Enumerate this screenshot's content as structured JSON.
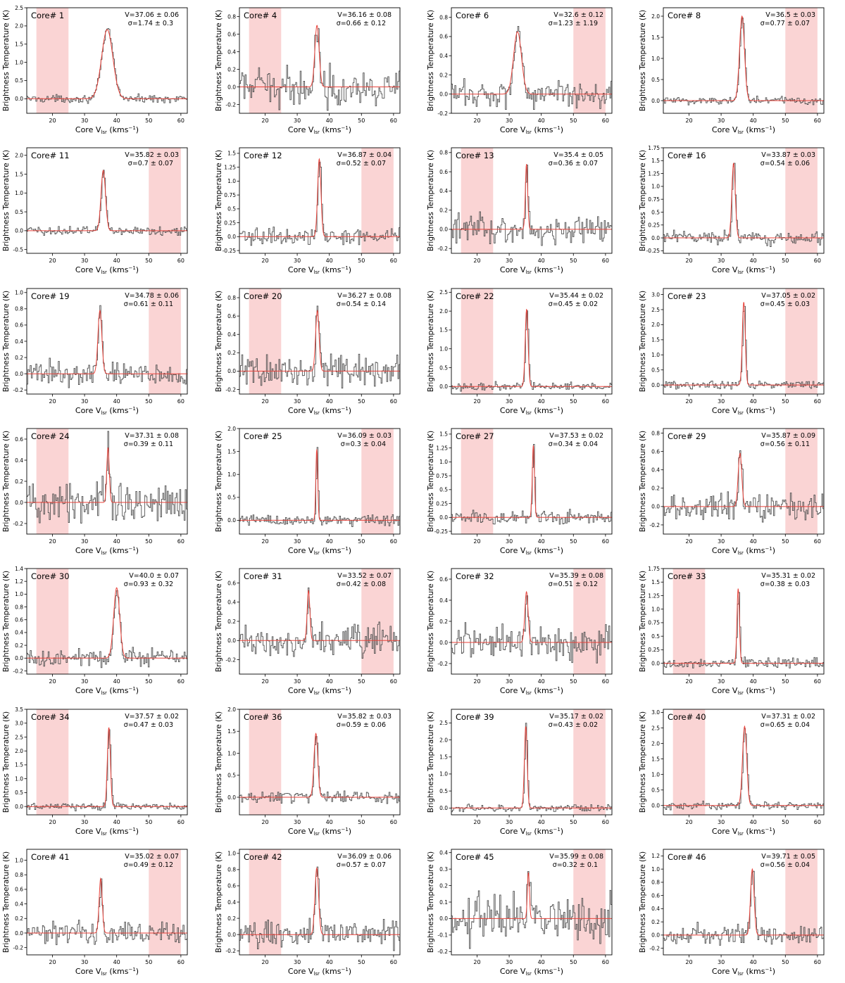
{
  "layout_rows": 7,
  "layout_cols": 4,
  "chart_data": [
    {
      "type": "line",
      "core": "Core# 1",
      "velocity": "V=37.06 ± 0.06",
      "sigma": "σ=1.74 ± 0.3",
      "center": 37.06,
      "width": 1.74,
      "peak": 1.9,
      "xlim": [
        12,
        62
      ],
      "ylim": [
        -0.4,
        2.5
      ],
      "yticks": [
        0.0,
        0.5,
        1.0,
        1.5,
        2.0,
        2.5
      ],
      "noise": 0.05,
      "shade": [
        15,
        25
      ],
      "xticks": [
        20,
        30,
        40,
        50,
        60
      ],
      "xlabel": "Core V_lsr (kms⁻¹)",
      "ylabel": "Brightness Temperature (K)"
    },
    {
      "type": "line",
      "core": "Core# 4",
      "velocity": "V=36.16 ± 0.08",
      "sigma": "σ=0.66 ± 0.12",
      "center": 36.16,
      "width": 0.66,
      "peak": 0.7,
      "xlim": [
        12,
        62
      ],
      "ylim": [
        -0.3,
        0.9
      ],
      "yticks": [
        -0.2,
        0.0,
        0.2,
        0.4,
        0.6,
        0.8
      ],
      "noise": 0.1,
      "shade": [
        15,
        25
      ],
      "xticks": [
        20,
        30,
        40,
        50,
        60
      ],
      "xlabel": "Core V_lsr (kms⁻¹)",
      "ylabel": "Brightness Temperature (K)"
    },
    {
      "type": "line",
      "core": "Core# 6",
      "velocity": "V=32.6 ± 0.12",
      "sigma": "σ=1.23 ± 1.19",
      "center": 32.6,
      "width": 1.23,
      "peak": 0.65,
      "xlim": [
        12,
        62
      ],
      "ylim": [
        -0.2,
        0.9
      ],
      "yticks": [
        -0.2,
        0.0,
        0.2,
        0.4,
        0.6,
        0.8
      ],
      "noise": 0.07,
      "shade": [
        50,
        60
      ],
      "xticks": [
        20,
        30,
        40,
        50,
        60
      ],
      "xlabel": "Core V_lsr (kms⁻¹)",
      "ylabel": "Brightness Temperature (K)"
    },
    {
      "type": "line",
      "core": "Core# 8",
      "velocity": "V=36.5 ± 0.03",
      "sigma": "σ=0.77 ± 0.07",
      "center": 36.5,
      "width": 0.77,
      "peak": 2.0,
      "xlim": [
        12,
        62
      ],
      "ylim": [
        -0.3,
        2.2
      ],
      "yticks": [
        0.0,
        0.5,
        1.0,
        1.5,
        2.0
      ],
      "noise": 0.05,
      "shade": [
        50,
        60
      ],
      "xticks": [
        20,
        30,
        40,
        50,
        60
      ],
      "xlabel": "Core V_lsr (kms⁻¹)",
      "ylabel": "Brightness Temperature (K)"
    },
    {
      "type": "line",
      "core": "Core# 11",
      "velocity": "V=35.82 ± 0.03",
      "sigma": "σ=0.7 ± 0.07",
      "center": 35.82,
      "width": 0.7,
      "peak": 1.6,
      "xlim": [
        12,
        62
      ],
      "ylim": [
        -0.6,
        2.2
      ],
      "yticks": [
        -0.5,
        0.0,
        0.5,
        1.0,
        1.5,
        2.0
      ],
      "noise": 0.06,
      "shade": [
        50,
        60
      ],
      "xticks": [
        20,
        30,
        40,
        50,
        60
      ],
      "xlabel": "Core V_lsr (kms⁻¹)",
      "ylabel": "Brightness Temperature (K)"
    },
    {
      "type": "line",
      "core": "Core# 12",
      "velocity": "V=36.87 ± 0.04",
      "sigma": "σ=0.52 ± 0.07",
      "center": 36.87,
      "width": 0.52,
      "peak": 1.4,
      "xlim": [
        12,
        62
      ],
      "ylim": [
        -0.3,
        1.6
      ],
      "yticks": [
        -0.25,
        0.0,
        0.25,
        0.5,
        0.75,
        1.0,
        1.25,
        1.5
      ],
      "noise": 0.07,
      "shade": [
        50,
        60
      ],
      "xticks": [
        20,
        30,
        40,
        50,
        60
      ],
      "xlabel": "Core V_lsr (kms⁻¹)",
      "ylabel": "Brightness Temperature (K)"
    },
    {
      "type": "line",
      "core": "Core# 13",
      "velocity": "V=35.4 ± 0.05",
      "sigma": "σ=0.36 ± 0.07",
      "center": 35.4,
      "width": 0.36,
      "peak": 0.68,
      "xlim": [
        12,
        62
      ],
      "ylim": [
        -0.25,
        0.85
      ],
      "yticks": [
        -0.2,
        0.0,
        0.2,
        0.4,
        0.6,
        0.8
      ],
      "noise": 0.07,
      "shade": [
        15,
        25
      ],
      "xticks": [
        20,
        30,
        40,
        50,
        60
      ],
      "xlabel": "Core V_lsr (kms⁻¹)",
      "ylabel": "Brightness Temperature (K)"
    },
    {
      "type": "line",
      "core": "Core# 16",
      "velocity": "V=33.87 ± 0.03",
      "sigma": "σ=0.54 ± 0.06",
      "center": 33.87,
      "width": 0.54,
      "peak": 1.45,
      "xlim": [
        12,
        62
      ],
      "ylim": [
        -0.3,
        1.75
      ],
      "yticks": [
        -0.25,
        0.0,
        0.25,
        0.5,
        0.75,
        1.0,
        1.25,
        1.5,
        1.75
      ],
      "noise": 0.06,
      "shade": [
        50,
        60
      ],
      "xticks": [
        20,
        30,
        40,
        50,
        60
      ],
      "xlabel": "Core V_lsr (kms⁻¹)",
      "ylabel": "Brightness Temperature (K)"
    },
    {
      "type": "line",
      "core": "Core# 19",
      "velocity": "V=34.78 ± 0.06",
      "sigma": "σ=0.61 ± 0.11",
      "center": 34.78,
      "width": 0.61,
      "peak": 0.78,
      "xlim": [
        12,
        62
      ],
      "ylim": [
        -0.25,
        1.05
      ],
      "yticks": [
        -0.2,
        0.0,
        0.2,
        0.4,
        0.6,
        0.8,
        1.0
      ],
      "noise": 0.07,
      "shade": [
        50,
        60
      ],
      "xticks": [
        20,
        30,
        40,
        50,
        60
      ],
      "xlabel": "Core V_lsr (kms⁻¹)",
      "ylabel": "Brightness Temperature (K)"
    },
    {
      "type": "line",
      "core": "Core# 20",
      "velocity": "V=36.27 ± 0.08",
      "sigma": "σ=0.54 ± 0.14",
      "center": 36.27,
      "width": 0.54,
      "peak": 0.66,
      "xlim": [
        12,
        62
      ],
      "ylim": [
        -0.25,
        0.9
      ],
      "yticks": [
        -0.2,
        0.0,
        0.2,
        0.4,
        0.6,
        0.8
      ],
      "noise": 0.08,
      "shade": [
        15,
        25
      ],
      "xticks": [
        20,
        30,
        40,
        50,
        60
      ],
      "xlabel": "Core V_lsr (kms⁻¹)",
      "ylabel": "Brightness Temperature (K)"
    },
    {
      "type": "line",
      "core": "Core# 22",
      "velocity": "V=35.44 ± 0.02",
      "sigma": "σ=0.45 ± 0.02",
      "center": 35.44,
      "width": 0.45,
      "peak": 2.05,
      "xlim": [
        12,
        62
      ],
      "ylim": [
        -0.2,
        2.6
      ],
      "yticks": [
        0.0,
        0.5,
        1.0,
        1.5,
        2.0,
        2.5
      ],
      "noise": 0.05,
      "shade": [
        15,
        25
      ],
      "xticks": [
        20,
        30,
        40,
        50,
        60
      ],
      "xlabel": "Core V_lsr (kms⁻¹)",
      "ylabel": "Brightness Temperature (K)"
    },
    {
      "type": "line",
      "core": "Core# 23",
      "velocity": "V=37.05 ± 0.02",
      "sigma": "σ=0.45 ± 0.03",
      "center": 37.05,
      "width": 0.45,
      "peak": 2.75,
      "xlim": [
        12,
        62
      ],
      "ylim": [
        -0.3,
        3.2
      ],
      "yticks": [
        0.0,
        0.5,
        1.0,
        1.5,
        2.0,
        2.5,
        3.0
      ],
      "noise": 0.06,
      "shade": [
        50,
        60
      ],
      "xticks": [
        20,
        30,
        40,
        50,
        60
      ],
      "xlabel": "Core V_lsr (kms⁻¹)",
      "ylabel": "Brightness Temperature (K)"
    },
    {
      "type": "line",
      "core": "Core# 24",
      "velocity": "V=37.31 ± 0.08",
      "sigma": "σ=0.39 ± 0.11",
      "center": 37.31,
      "width": 0.39,
      "peak": 0.52,
      "xlim": [
        12,
        62
      ],
      "ylim": [
        -0.3,
        0.7
      ],
      "yticks": [
        -0.2,
        0.0,
        0.2,
        0.4,
        0.6
      ],
      "noise": 0.09,
      "shade": [
        15,
        25
      ],
      "xticks": [
        20,
        30,
        40,
        50,
        60
      ],
      "xlabel": "Core V_lsr (kms⁻¹)",
      "ylabel": "Brightness Temperature (K)"
    },
    {
      "type": "line",
      "core": "Core# 25",
      "velocity": "V=36.09 ± 0.03",
      "sigma": "σ=0.3 ± 0.04",
      "center": 36.09,
      "width": 0.3,
      "peak": 1.55,
      "xlim": [
        12,
        62
      ],
      "ylim": [
        -0.3,
        2.0
      ],
      "yticks": [
        0.0,
        0.5,
        1.0,
        1.5,
        2.0
      ],
      "noise": 0.06,
      "shade": [
        50,
        60
      ],
      "xticks": [
        20,
        30,
        40,
        50,
        60
      ],
      "xlabel": "Core V_lsr (kms⁻¹)",
      "ylabel": "Brightness Temperature (K)"
    },
    {
      "type": "line",
      "core": "Core# 27",
      "velocity": "V=37.53 ± 0.02",
      "sigma": "σ=0.34 ± 0.04",
      "center": 37.53,
      "width": 0.34,
      "peak": 1.3,
      "xlim": [
        12,
        62
      ],
      "ylim": [
        -0.3,
        1.6
      ],
      "yticks": [
        -0.25,
        0.0,
        0.25,
        0.5,
        0.75,
        1.0,
        1.25,
        1.5
      ],
      "noise": 0.06,
      "shade": [
        15,
        25
      ],
      "xticks": [
        20,
        30,
        40,
        50,
        60
      ],
      "xlabel": "Core V_lsr (kms⁻¹)",
      "ylabel": "Brightness Temperature (K)"
    },
    {
      "type": "line",
      "core": "Core# 29",
      "velocity": "V=35.87 ± 0.09",
      "sigma": "σ=0.56 ± 0.11",
      "center": 35.87,
      "width": 0.56,
      "peak": 0.58,
      "xlim": [
        12,
        62
      ],
      "ylim": [
        -0.3,
        0.85
      ],
      "yticks": [
        -0.2,
        0.0,
        0.2,
        0.4,
        0.6,
        0.8
      ],
      "noise": 0.08,
      "shade": [
        50,
        60
      ],
      "xticks": [
        20,
        30,
        40,
        50,
        60
      ],
      "xlabel": "Core V_lsr (kms⁻¹)",
      "ylabel": "Brightness Temperature (K)"
    },
    {
      "type": "line",
      "core": "Core# 30",
      "velocity": "V=40.0 ± 0.07",
      "sigma": "σ=0.93 ± 0.32",
      "center": 40.0,
      "width": 0.93,
      "peak": 1.1,
      "xlim": [
        12,
        62
      ],
      "ylim": [
        -0.25,
        1.4
      ],
      "yticks": [
        -0.2,
        0.0,
        0.2,
        0.4,
        0.6,
        0.8,
        1.0,
        1.2,
        1.4
      ],
      "noise": 0.07,
      "shade": [
        15,
        25
      ],
      "xticks": [
        20,
        30,
        40,
        50,
        60
      ],
      "xlabel": "Core V_lsr (kms⁻¹)",
      "ylabel": "Brightness Temperature (K)"
    },
    {
      "type": "line",
      "core": "Core# 31",
      "velocity": "V=33.52 ± 0.07",
      "sigma": "σ=0.42 ± 0.08",
      "center": 33.52,
      "width": 0.42,
      "peak": 0.52,
      "xlim": [
        12,
        62
      ],
      "ylim": [
        -0.35,
        0.75
      ],
      "yticks": [
        -0.2,
        0.0,
        0.2,
        0.4,
        0.6
      ],
      "noise": 0.08,
      "shade": [
        50,
        60
      ],
      "xticks": [
        20,
        30,
        40,
        50,
        60
      ],
      "xlabel": "Core V_lsr (kms⁻¹)",
      "ylabel": "Brightness Temperature (K)"
    },
    {
      "type": "line",
      "core": "Core# 32",
      "velocity": "V=35.39 ± 0.08",
      "sigma": "σ=0.51 ± 0.12",
      "center": 35.39,
      "width": 0.51,
      "peak": 0.48,
      "xlim": [
        12,
        62
      ],
      "ylim": [
        -0.3,
        0.7
      ],
      "yticks": [
        -0.2,
        0.0,
        0.2,
        0.4,
        0.6
      ],
      "noise": 0.08,
      "shade": [
        50,
        60
      ],
      "xticks": [
        20,
        30,
        40,
        50,
        60
      ],
      "xlabel": "Core V_lsr (kms⁻¹)",
      "ylabel": "Brightness Temperature (K)"
    },
    {
      "type": "line",
      "core": "Core# 33",
      "velocity": "V=35.31 ± 0.02",
      "sigma": "σ=0.38 ± 0.03",
      "center": 35.31,
      "width": 0.38,
      "peak": 1.38,
      "xlim": [
        12,
        62
      ],
      "ylim": [
        -0.2,
        1.75
      ],
      "yticks": [
        0.0,
        0.25,
        0.5,
        0.75,
        1.0,
        1.25,
        1.5,
        1.75
      ],
      "noise": 0.05,
      "shade": [
        15,
        25
      ],
      "xticks": [
        20,
        30,
        40,
        50,
        60
      ],
      "xlabel": "Core V_lsr (kms⁻¹)",
      "ylabel": "Brightness Temperature (K)"
    },
    {
      "type": "line",
      "core": "Core# 34",
      "velocity": "V=37.57 ± 0.02",
      "sigma": "σ=0.47 ± 0.03",
      "center": 37.57,
      "width": 0.47,
      "peak": 2.85,
      "xlim": [
        12,
        62
      ],
      "ylim": [
        -0.3,
        3.5
      ],
      "yticks": [
        0.0,
        0.5,
        1.0,
        1.5,
        2.0,
        2.5,
        3.0,
        3.5
      ],
      "noise": 0.06,
      "shade": [
        15,
        25
      ],
      "xticks": [
        20,
        30,
        40,
        50,
        60
      ],
      "xlabel": "Core V_lsr (kms⁻¹)",
      "ylabel": "Brightness Temperature (K)"
    },
    {
      "type": "line",
      "core": "Core# 36",
      "velocity": "V=35.82 ± 0.03",
      "sigma": "σ=0.59 ± 0.06",
      "center": 35.82,
      "width": 0.59,
      "peak": 1.45,
      "xlim": [
        12,
        62
      ],
      "ylim": [
        -0.4,
        2.0
      ],
      "yticks": [
        0.0,
        0.5,
        1.0,
        1.5,
        2.0
      ],
      "noise": 0.06,
      "shade": [
        15,
        25
      ],
      "xticks": [
        20,
        30,
        40,
        50,
        60
      ],
      "xlabel": "Core V_lsr (kms⁻¹)",
      "ylabel": "Brightness Temperature (K)"
    },
    {
      "type": "line",
      "core": "Core# 39",
      "velocity": "V=35.17 ± 0.02",
      "sigma": "σ=0.43 ± 0.02",
      "center": 35.17,
      "width": 0.43,
      "peak": 2.4,
      "xlim": [
        12,
        62
      ],
      "ylim": [
        -0.2,
        2.9
      ],
      "yticks": [
        0.0,
        0.5,
        1.0,
        1.5,
        2.0,
        2.5
      ],
      "noise": 0.05,
      "shade": [
        50,
        60
      ],
      "xticks": [
        20,
        30,
        40,
        50,
        60
      ],
      "xlabel": "Core V_lsr (kms⁻¹)",
      "ylabel": "Brightness Temperature (K)"
    },
    {
      "type": "line",
      "core": "Core# 40",
      "velocity": "V=37.31 ± 0.02",
      "sigma": "σ=0.65 ± 0.04",
      "center": 37.31,
      "width": 0.65,
      "peak": 2.55,
      "xlim": [
        12,
        62
      ],
      "ylim": [
        -0.3,
        3.1
      ],
      "yticks": [
        0.0,
        0.5,
        1.0,
        1.5,
        2.0,
        2.5,
        3.0
      ],
      "noise": 0.06,
      "shade": [
        15,
        25
      ],
      "xticks": [
        20,
        30,
        40,
        50,
        60
      ],
      "xlabel": "Core V_lsr (kms⁻¹)",
      "ylabel": "Brightness Temperature (K)"
    },
    {
      "type": "line",
      "core": "Core# 41",
      "velocity": "V=35.02 ± 0.07",
      "sigma": "σ=0.49 ± 0.12",
      "center": 35.02,
      "width": 0.49,
      "peak": 0.75,
      "xlim": [
        12,
        62
      ],
      "ylim": [
        -0.3,
        1.15
      ],
      "yticks": [
        -0.2,
        0.0,
        0.2,
        0.4,
        0.6,
        0.8,
        1.0
      ],
      "noise": 0.08,
      "shade": [
        50,
        60
      ],
      "xticks": [
        20,
        30,
        40,
        50,
        60
      ],
      "xlabel": "Core V_lsr (kms⁻¹)",
      "ylabel": "Brightness Temperature (K)"
    },
    {
      "type": "line",
      "core": "Core# 42",
      "velocity": "V=36.09 ± 0.06",
      "sigma": "σ=0.57 ± 0.07",
      "center": 36.09,
      "width": 0.57,
      "peak": 0.82,
      "xlim": [
        12,
        62
      ],
      "ylim": [
        -0.25,
        1.05
      ],
      "yticks": [
        -0.2,
        0.0,
        0.2,
        0.4,
        0.6,
        0.8,
        1.0
      ],
      "noise": 0.08,
      "shade": [
        15,
        25
      ],
      "xticks": [
        20,
        30,
        40,
        50,
        60
      ],
      "xlabel": "Core V_lsr (kms⁻¹)",
      "ylabel": "Brightness Temperature (K)"
    },
    {
      "type": "line",
      "core": "Core# 45",
      "velocity": "V=35.99 ± 0.08",
      "sigma": "σ=0.32 ± 0.1",
      "center": 35.99,
      "width": 0.32,
      "peak": 0.28,
      "xlim": [
        12,
        62
      ],
      "ylim": [
        -0.22,
        0.42
      ],
      "yticks": [
        -0.2,
        -0.1,
        0.0,
        0.1,
        0.2,
        0.3,
        0.4
      ],
      "noise": 0.07,
      "shade": [
        50,
        60
      ],
      "xticks": [
        20,
        30,
        40,
        50,
        60
      ],
      "xlabel": "Core V_lsr (kms⁻¹)",
      "ylabel": "Brightness Temperature (K)"
    },
    {
      "type": "line",
      "core": "Core# 46",
      "velocity": "V=39.71 ± 0.05",
      "sigma": "σ=0.56 ± 0.04",
      "center": 39.71,
      "width": 0.56,
      "peak": 1.0,
      "xlim": [
        12,
        62
      ],
      "ylim": [
        -0.3,
        1.3
      ],
      "yticks": [
        -0.2,
        0.0,
        0.2,
        0.4,
        0.6,
        0.8,
        1.0,
        1.2
      ],
      "noise": 0.07,
      "shade": [
        50,
        60
      ],
      "xticks": [
        20,
        30,
        40,
        50,
        60
      ],
      "xlabel": "Core V_lsr (kms⁻¹)",
      "ylabel": "Brightness Temperature (K)"
    }
  ]
}
